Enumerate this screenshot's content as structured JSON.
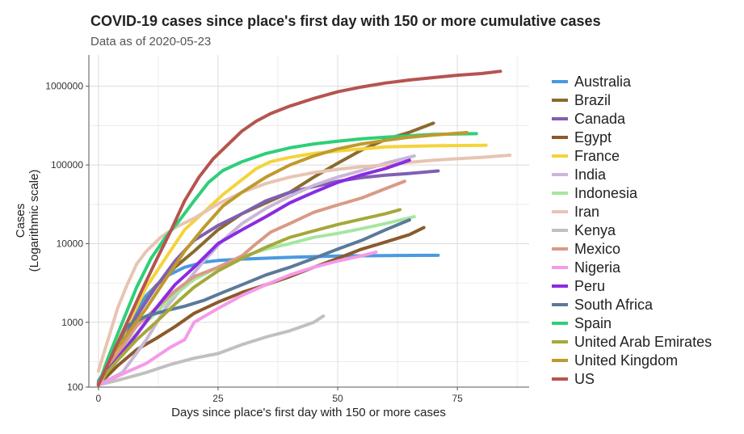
{
  "chart_data": {
    "type": "line",
    "title": "COVID-19 cases since place's first day with 150 or more cumulative cases",
    "subtitle": "Data as of 2020-05-23",
    "xlabel": "Days since place's first day with 150 or more cases",
    "ylabel_line1": "Cases",
    "ylabel_line2": "(Logarithmic scale)",
    "y_scale": "log",
    "xlim": [
      -2,
      90
    ],
    "ylim": [
      150,
      2500000
    ],
    "x_ticks": [
      0,
      25,
      50,
      75
    ],
    "x_tick_labels": [
      "0",
      "25",
      "50",
      "75"
    ],
    "y_ticks": [
      100,
      1000,
      10000,
      100000,
      1000000
    ],
    "y_tick_labels": [
      "100",
      "1000",
      "10000",
      "100000",
      "1000000"
    ],
    "grid": true,
    "legend_position": "right",
    "series": [
      {
        "name": "Australia",
        "color": "#4a9ae0",
        "points": [
          [
            0,
            180
          ],
          [
            3,
            350
          ],
          [
            6,
            900
          ],
          [
            10,
            2200
          ],
          [
            14,
            3800
          ],
          [
            18,
            5000
          ],
          [
            22,
            5800
          ],
          [
            25,
            6100
          ],
          [
            30,
            6350
          ],
          [
            40,
            6700
          ],
          [
            50,
            6950
          ],
          [
            60,
            7050
          ],
          [
            71,
            7100
          ]
        ]
      },
      {
        "name": "Brazil",
        "color": "#8b6a30",
        "points": [
          [
            0,
            160
          ],
          [
            4,
            400
          ],
          [
            8,
            1200
          ],
          [
            12,
            2900
          ],
          [
            16,
            5000
          ],
          [
            20,
            8000
          ],
          [
            25,
            15000
          ],
          [
            30,
            24000
          ],
          [
            35,
            33000
          ],
          [
            40,
            45000
          ],
          [
            45,
            70000
          ],
          [
            50,
            105000
          ],
          [
            55,
            155000
          ],
          [
            60,
            210000
          ],
          [
            65,
            260000
          ],
          [
            70,
            340000
          ]
        ]
      },
      {
        "name": "Canada",
        "color": "#7f5fb3",
        "points": [
          [
            0,
            170
          ],
          [
            4,
            500
          ],
          [
            8,
            1200
          ],
          [
            12,
            2800
          ],
          [
            16,
            6000
          ],
          [
            20,
            11000
          ],
          [
            25,
            17000
          ],
          [
            30,
            24000
          ],
          [
            35,
            35000
          ],
          [
            40,
            45000
          ],
          [
            45,
            53000
          ],
          [
            50,
            62000
          ],
          [
            55,
            69000
          ],
          [
            60,
            74000
          ],
          [
            65,
            78000
          ],
          [
            71,
            84000
          ]
        ]
      },
      {
        "name": "Egypt",
        "color": "#8b5a2b",
        "points": [
          [
            0,
            160
          ],
          [
            4,
            280
          ],
          [
            8,
            450
          ],
          [
            12,
            620
          ],
          [
            16,
            880
          ],
          [
            20,
            1300
          ],
          [
            25,
            1800
          ],
          [
            30,
            2400
          ],
          [
            35,
            3000
          ],
          [
            40,
            3800
          ],
          [
            45,
            5000
          ],
          [
            50,
            6500
          ],
          [
            55,
            8500
          ],
          [
            60,
            10500
          ],
          [
            65,
            13000
          ],
          [
            68,
            16000
          ]
        ]
      },
      {
        "name": "France",
        "color": "#f5d33a",
        "points": [
          [
            0,
            170
          ],
          [
            3,
            300
          ],
          [
            6,
            900
          ],
          [
            10,
            2800
          ],
          [
            14,
            6500
          ],
          [
            18,
            15000
          ],
          [
            22,
            25000
          ],
          [
            26,
            42000
          ],
          [
            30,
            65000
          ],
          [
            33,
            90000
          ],
          [
            36,
            110000
          ],
          [
            40,
            125000
          ],
          [
            45,
            140000
          ],
          [
            50,
            150000
          ],
          [
            55,
            160000
          ],
          [
            60,
            170000
          ],
          [
            70,
            175000
          ],
          [
            81,
            178000
          ]
        ]
      },
      {
        "name": "India",
        "color": "#c9b6d8",
        "points": [
          [
            0,
            160
          ],
          [
            5,
            230
          ],
          [
            10,
            600
          ],
          [
            14,
            1500
          ],
          [
            18,
            3000
          ],
          [
            22,
            6000
          ],
          [
            26,
            11000
          ],
          [
            30,
            18000
          ],
          [
            35,
            28000
          ],
          [
            40,
            40000
          ],
          [
            45,
            55000
          ],
          [
            50,
            70000
          ],
          [
            55,
            85000
          ],
          [
            60,
            105000
          ],
          [
            66,
            130000
          ]
        ]
      },
      {
        "name": "Indonesia",
        "color": "#a6e6a0",
        "points": [
          [
            0,
            160
          ],
          [
            5,
            450
          ],
          [
            10,
            1000
          ],
          [
            15,
            2000
          ],
          [
            20,
            3500
          ],
          [
            25,
            5000
          ],
          [
            30,
            6800
          ],
          [
            35,
            8500
          ],
          [
            40,
            10000
          ],
          [
            45,
            12000
          ],
          [
            50,
            13500
          ],
          [
            55,
            15500
          ],
          [
            60,
            18000
          ],
          [
            66,
            22000
          ]
        ]
      },
      {
        "name": "Iran",
        "color": "#e8c4b2",
        "points": [
          [
            0,
            240
          ],
          [
            2,
            600
          ],
          [
            4,
            1500
          ],
          [
            6,
            3000
          ],
          [
            8,
            5500
          ],
          [
            10,
            8000
          ],
          [
            13,
            12000
          ],
          [
            16,
            16000
          ],
          [
            20,
            21000
          ],
          [
            25,
            32000
          ],
          [
            30,
            45000
          ],
          [
            35,
            58000
          ],
          [
            40,
            70000
          ],
          [
            45,
            80000
          ],
          [
            50,
            88000
          ],
          [
            55,
            95000
          ],
          [
            60,
            100000
          ],
          [
            65,
            108000
          ],
          [
            70,
            115000
          ],
          [
            75,
            120000
          ],
          [
            80,
            125000
          ],
          [
            86,
            133000
          ]
        ]
      },
      {
        "name": "Kenya",
        "color": "#c0c0c0",
        "points": [
          [
            0,
            160
          ],
          [
            5,
            190
          ],
          [
            10,
            230
          ],
          [
            15,
            290
          ],
          [
            20,
            350
          ],
          [
            25,
            400
          ],
          [
            30,
            520
          ],
          [
            35,
            650
          ],
          [
            40,
            780
          ],
          [
            45,
            1000
          ],
          [
            47,
            1200
          ]
        ]
      },
      {
        "name": "Mexico",
        "color": "#d99a86",
        "points": [
          [
            0,
            170
          ],
          [
            4,
            400
          ],
          [
            8,
            900
          ],
          [
            12,
            1500
          ],
          [
            16,
            2500
          ],
          [
            20,
            3800
          ],
          [
            25,
            5000
          ],
          [
            30,
            7000
          ],
          [
            33,
            10000
          ],
          [
            36,
            14000
          ],
          [
            40,
            18000
          ],
          [
            45,
            25000
          ],
          [
            50,
            31000
          ],
          [
            55,
            38000
          ],
          [
            60,
            50000
          ],
          [
            64,
            62000
          ]
        ]
      },
      {
        "name": "Nigeria",
        "color": "#f59ae8",
        "points": [
          [
            0,
            160
          ],
          [
            5,
            220
          ],
          [
            10,
            300
          ],
          [
            15,
            480
          ],
          [
            18,
            600
          ],
          [
            20,
            1000
          ],
          [
            25,
            1500
          ],
          [
            30,
            2200
          ],
          [
            35,
            3000
          ],
          [
            40,
            4000
          ],
          [
            45,
            5000
          ],
          [
            50,
            6000
          ],
          [
            55,
            7000
          ],
          [
            58,
            7800
          ]
        ]
      },
      {
        "name": "Peru",
        "color": "#8a2be2",
        "points": [
          [
            0,
            170
          ],
          [
            4,
            350
          ],
          [
            8,
            700
          ],
          [
            12,
            1500
          ],
          [
            16,
            3000
          ],
          [
            20,
            5000
          ],
          [
            25,
            10000
          ],
          [
            30,
            15000
          ],
          [
            35,
            22000
          ],
          [
            40,
            33000
          ],
          [
            45,
            45000
          ],
          [
            50,
            60000
          ],
          [
            55,
            75000
          ],
          [
            60,
            90000
          ],
          [
            65,
            115000
          ]
        ]
      },
      {
        "name": "South Africa",
        "color": "#5b7a9a",
        "points": [
          [
            0,
            170
          ],
          [
            3,
            400
          ],
          [
            6,
            900
          ],
          [
            10,
            1200
          ],
          [
            14,
            1400
          ],
          [
            18,
            1600
          ],
          [
            22,
            1900
          ],
          [
            26,
            2400
          ],
          [
            30,
            3000
          ],
          [
            35,
            4000
          ],
          [
            40,
            5000
          ],
          [
            45,
            6500
          ],
          [
            50,
            8500
          ],
          [
            55,
            11000
          ],
          [
            60,
            15000
          ],
          [
            65,
            20000
          ]
        ]
      },
      {
        "name": "Spain",
        "color": "#2ecf78",
        "points": [
          [
            0,
            160
          ],
          [
            2,
            350
          ],
          [
            5,
            1000
          ],
          [
            8,
            2800
          ],
          [
            11,
            6500
          ],
          [
            14,
            12000
          ],
          [
            17,
            20000
          ],
          [
            20,
            35000
          ],
          [
            23,
            60000
          ],
          [
            26,
            85000
          ],
          [
            30,
            110000
          ],
          [
            35,
            140000
          ],
          [
            40,
            165000
          ],
          [
            45,
            185000
          ],
          [
            50,
            200000
          ],
          [
            55,
            215000
          ],
          [
            60,
            225000
          ],
          [
            65,
            235000
          ],
          [
            70,
            245000
          ],
          [
            79,
            250000
          ]
        ]
      },
      {
        "name": "United Arab Emirates",
        "color": "#a5a83a",
        "points": [
          [
            0,
            170
          ],
          [
            4,
            330
          ],
          [
            8,
            600
          ],
          [
            12,
            1000
          ],
          [
            16,
            1700
          ],
          [
            20,
            2800
          ],
          [
            25,
            4500
          ],
          [
            30,
            6500
          ],
          [
            35,
            9000
          ],
          [
            40,
            12000
          ],
          [
            45,
            14500
          ],
          [
            50,
            17500
          ],
          [
            55,
            20500
          ],
          [
            60,
            24000
          ],
          [
            63,
            27000
          ]
        ]
      },
      {
        "name": "United Kingdom",
        "color": "#bf9a2c",
        "points": [
          [
            0,
            160
          ],
          [
            3,
            400
          ],
          [
            6,
            700
          ],
          [
            10,
            1500
          ],
          [
            14,
            3500
          ],
          [
            18,
            8000
          ],
          [
            22,
            16000
          ],
          [
            26,
            30000
          ],
          [
            30,
            45000
          ],
          [
            35,
            70000
          ],
          [
            40,
            100000
          ],
          [
            45,
            130000
          ],
          [
            50,
            160000
          ],
          [
            55,
            185000
          ],
          [
            60,
            205000
          ],
          [
            65,
            225000
          ],
          [
            70,
            240000
          ],
          [
            77,
            258000
          ]
        ]
      },
      {
        "name": "US",
        "color": "#b5544f",
        "points": [
          [
            0,
            160
          ],
          [
            3,
            400
          ],
          [
            6,
            1000
          ],
          [
            9,
            2500
          ],
          [
            12,
            6000
          ],
          [
            15,
            14000
          ],
          [
            18,
            35000
          ],
          [
            21,
            70000
          ],
          [
            24,
            120000
          ],
          [
            27,
            180000
          ],
          [
            30,
            270000
          ],
          [
            33,
            360000
          ],
          [
            36,
            450000
          ],
          [
            40,
            560000
          ],
          [
            45,
            700000
          ],
          [
            50,
            850000
          ],
          [
            55,
            980000
          ],
          [
            60,
            1100000
          ],
          [
            65,
            1200000
          ],
          [
            70,
            1290000
          ],
          [
            75,
            1380000
          ],
          [
            80,
            1450000
          ],
          [
            84,
            1550000
          ]
        ]
      }
    ]
  }
}
